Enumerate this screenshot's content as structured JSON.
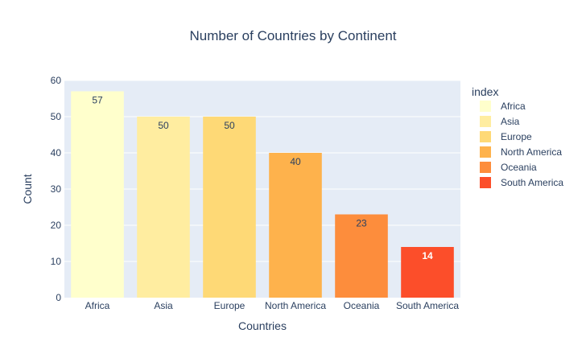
{
  "chart_data": {
    "type": "bar",
    "title": "Number of Countries by Continent",
    "xlabel": "Countries",
    "ylabel": "Count",
    "categories": [
      "Africa",
      "Asia",
      "Europe",
      "North America",
      "Oceania",
      "South America"
    ],
    "values": [
      57,
      50,
      50,
      40,
      23,
      14
    ],
    "colors": [
      "#ffffcc",
      "#ffeda0",
      "#fed976",
      "#feb24c",
      "#fd8d3c",
      "#fc4e2a"
    ],
    "label_colors": [
      "#2a3f5f",
      "#2a3f5f",
      "#2a3f5f",
      "#2a3f5f",
      "#2a3f5f",
      "#ffffff"
    ],
    "ylim": [
      0,
      60
    ],
    "yticks": [
      0,
      10,
      20,
      30,
      40,
      50,
      60
    ],
    "grid": true,
    "plot_background": "#e5ecf6",
    "legend": {
      "title": "index",
      "placement": "right",
      "entries": [
        "Africa",
        "Asia",
        "Europe",
        "North America",
        "Oceania",
        "South America"
      ]
    }
  }
}
